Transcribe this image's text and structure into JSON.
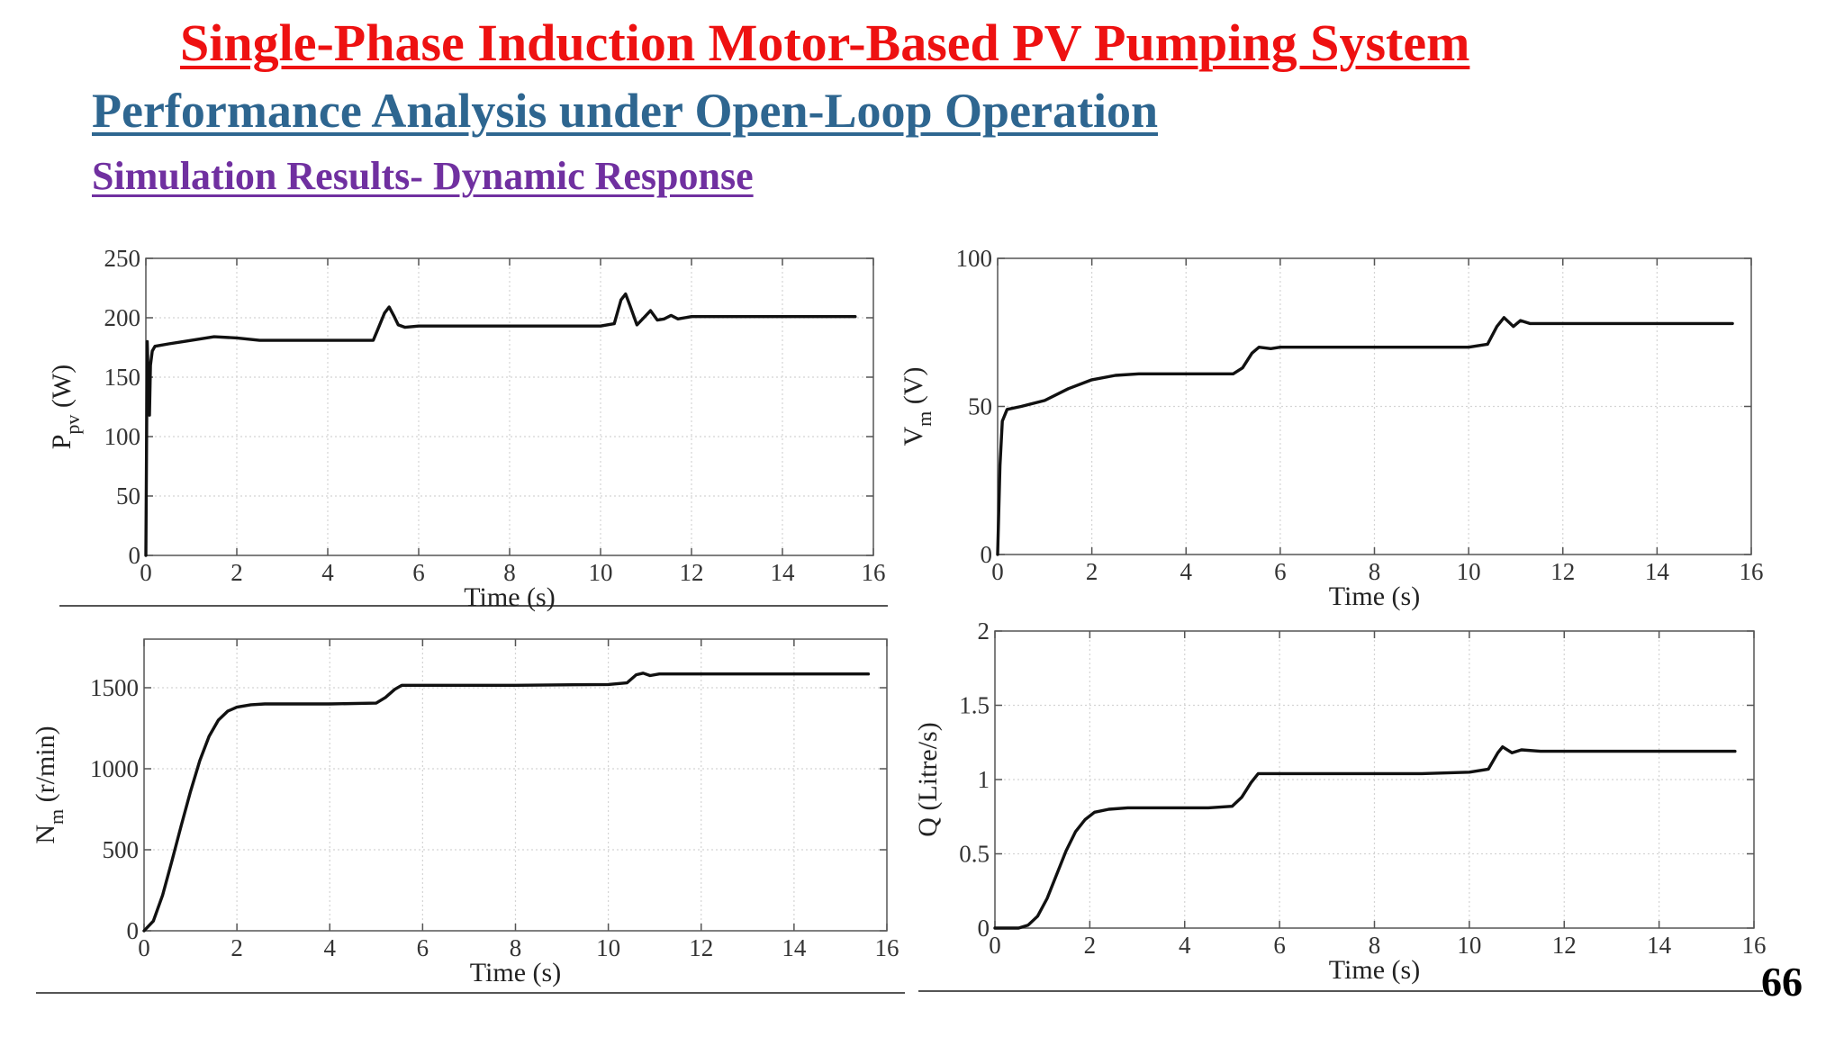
{
  "slide": {
    "title": "Single-Phase Induction Motor-Based PV Pumping System",
    "subtitle": "Performance Analysis under Open-Loop Operation",
    "section": "Simulation Results- Dynamic Response",
    "page_number": "66"
  },
  "chart_data": [
    {
      "type": "line",
      "id": "ppv",
      "xlabel": "Time (s)",
      "ylabel": {
        "base": "P",
        "sub": "pv",
        "rest": " (W)"
      },
      "xlim": [
        0,
        16
      ],
      "ylim": [
        0,
        250
      ],
      "xticks": [
        0,
        2,
        4,
        6,
        8,
        10,
        12,
        14,
        16
      ],
      "yticks": [
        0,
        50,
        100,
        150,
        200,
        250
      ],
      "grid": true,
      "series": [
        {
          "values": [
            [
              0,
              0
            ],
            [
              0.03,
              180
            ],
            [
              0.06,
              140
            ],
            [
              0.08,
              118
            ],
            [
              0.1,
              160
            ],
            [
              0.14,
              172
            ],
            [
              0.2,
              176
            ],
            [
              0.5,
              178
            ],
            [
              1.0,
              181
            ],
            [
              1.5,
              184
            ],
            [
              2.0,
              183
            ],
            [
              2.5,
              181
            ],
            [
              3.0,
              181
            ],
            [
              4.0,
              181
            ],
            [
              5.0,
              181
            ],
            [
              5.1,
              190
            ],
            [
              5.25,
              204
            ],
            [
              5.35,
              209
            ],
            [
              5.45,
              202
            ],
            [
              5.55,
              194
            ],
            [
              5.7,
              192
            ],
            [
              6.0,
              193
            ],
            [
              7.0,
              193
            ],
            [
              8.0,
              193
            ],
            [
              9.0,
              193
            ],
            [
              10.0,
              193
            ],
            [
              10.3,
              195
            ],
            [
              10.45,
              215
            ],
            [
              10.55,
              220
            ],
            [
              10.65,
              210
            ],
            [
              10.8,
              194
            ],
            [
              10.95,
              200
            ],
            [
              11.1,
              206
            ],
            [
              11.25,
              198
            ],
            [
              11.4,
              199
            ],
            [
              11.55,
              202
            ],
            [
              11.7,
              199
            ],
            [
              12.0,
              201
            ],
            [
              13.0,
              201
            ],
            [
              14.0,
              201
            ],
            [
              15.0,
              201
            ],
            [
              15.6,
              201
            ]
          ]
        }
      ]
    },
    {
      "type": "line",
      "id": "vm",
      "xlabel": "Time (s)",
      "ylabel": {
        "base": "V",
        "sub": "m",
        "rest": " (V)"
      },
      "xlim": [
        0,
        16
      ],
      "ylim": [
        0,
        100
      ],
      "xticks": [
        0,
        2,
        4,
        6,
        8,
        10,
        12,
        14,
        16
      ],
      "yticks": [
        0,
        50,
        100
      ],
      "grid": true,
      "series": [
        {
          "values": [
            [
              0,
              0
            ],
            [
              0.05,
              30
            ],
            [
              0.1,
              45
            ],
            [
              0.2,
              49
            ],
            [
              0.5,
              50
            ],
            [
              1.0,
              52
            ],
            [
              1.5,
              56
            ],
            [
              2.0,
              59
            ],
            [
              2.5,
              60.5
            ],
            [
              3.0,
              61
            ],
            [
              4.0,
              61
            ],
            [
              5.0,
              61
            ],
            [
              5.2,
              63
            ],
            [
              5.4,
              68
            ],
            [
              5.55,
              70
            ],
            [
              5.8,
              69.5
            ],
            [
              6.0,
              70
            ],
            [
              7.0,
              70
            ],
            [
              8.0,
              70
            ],
            [
              9.0,
              70
            ],
            [
              10.0,
              70
            ],
            [
              10.4,
              71
            ],
            [
              10.6,
              77
            ],
            [
              10.75,
              80
            ],
            [
              10.95,
              77
            ],
            [
              11.1,
              79
            ],
            [
              11.3,
              78
            ],
            [
              12.0,
              78
            ],
            [
              13.0,
              78
            ],
            [
              14.0,
              78
            ],
            [
              15.0,
              78
            ],
            [
              15.6,
              78
            ]
          ]
        }
      ]
    },
    {
      "type": "line",
      "id": "nm",
      "xlabel": "Time (s)",
      "ylabel": {
        "base": "N",
        "sub": "m",
        "rest": " (r/min)"
      },
      "xlim": [
        0,
        16
      ],
      "ylim": [
        0,
        1800
      ],
      "xticks": [
        0,
        2,
        4,
        6,
        8,
        10,
        12,
        14,
        16
      ],
      "yticks": [
        0,
        500,
        1000,
        1500
      ],
      "grid": true,
      "series": [
        {
          "values": [
            [
              0,
              0
            ],
            [
              0.2,
              60
            ],
            [
              0.4,
              220
            ],
            [
              0.6,
              430
            ],
            [
              0.8,
              650
            ],
            [
              1.0,
              860
            ],
            [
              1.2,
              1050
            ],
            [
              1.4,
              1200
            ],
            [
              1.6,
              1300
            ],
            [
              1.8,
              1355
            ],
            [
              2.0,
              1380
            ],
            [
              2.3,
              1395
            ],
            [
              2.6,
              1400
            ],
            [
              3.0,
              1400
            ],
            [
              4.0,
              1400
            ],
            [
              5.0,
              1405
            ],
            [
              5.2,
              1440
            ],
            [
              5.4,
              1490
            ],
            [
              5.55,
              1515
            ],
            [
              6.0,
              1515
            ],
            [
              7.0,
              1515
            ],
            [
              8.0,
              1515
            ],
            [
              9.0,
              1518
            ],
            [
              10.0,
              1520
            ],
            [
              10.4,
              1530
            ],
            [
              10.6,
              1580
            ],
            [
              10.75,
              1590
            ],
            [
              10.9,
              1575
            ],
            [
              11.1,
              1585
            ],
            [
              12.0,
              1585
            ],
            [
              13.0,
              1585
            ],
            [
              14.0,
              1585
            ],
            [
              15.0,
              1585
            ],
            [
              15.6,
              1585
            ]
          ]
        }
      ]
    },
    {
      "type": "line",
      "id": "q",
      "xlabel": "Time (s)",
      "ylabel": {
        "base": "Q (Litre/s)",
        "sub": "",
        "rest": ""
      },
      "xlim": [
        0,
        16
      ],
      "ylim": [
        0,
        2
      ],
      "xticks": [
        0,
        2,
        4,
        6,
        8,
        10,
        12,
        14,
        16
      ],
      "yticks": [
        0,
        0.5,
        1,
        1.5,
        2
      ],
      "grid": true,
      "series": [
        {
          "values": [
            [
              0,
              0
            ],
            [
              0.5,
              0
            ],
            [
              0.7,
              0.02
            ],
            [
              0.9,
              0.08
            ],
            [
              1.1,
              0.2
            ],
            [
              1.3,
              0.36
            ],
            [
              1.5,
              0.52
            ],
            [
              1.7,
              0.65
            ],
            [
              1.9,
              0.73
            ],
            [
              2.1,
              0.78
            ],
            [
              2.4,
              0.8
            ],
            [
              2.8,
              0.81
            ],
            [
              3.5,
              0.81
            ],
            [
              4.5,
              0.81
            ],
            [
              5.0,
              0.82
            ],
            [
              5.2,
              0.88
            ],
            [
              5.4,
              0.98
            ],
            [
              5.55,
              1.04
            ],
            [
              6.0,
              1.04
            ],
            [
              7.0,
              1.04
            ],
            [
              8.0,
              1.04
            ],
            [
              9.0,
              1.04
            ],
            [
              10.0,
              1.05
            ],
            [
              10.4,
              1.07
            ],
            [
              10.6,
              1.18
            ],
            [
              10.7,
              1.22
            ],
            [
              10.9,
              1.18
            ],
            [
              11.1,
              1.2
            ],
            [
              11.5,
              1.19
            ],
            [
              12.0,
              1.19
            ],
            [
              13.0,
              1.19
            ],
            [
              14.0,
              1.19
            ],
            [
              15.0,
              1.19
            ],
            [
              15.6,
              1.19
            ]
          ]
        }
      ]
    }
  ]
}
